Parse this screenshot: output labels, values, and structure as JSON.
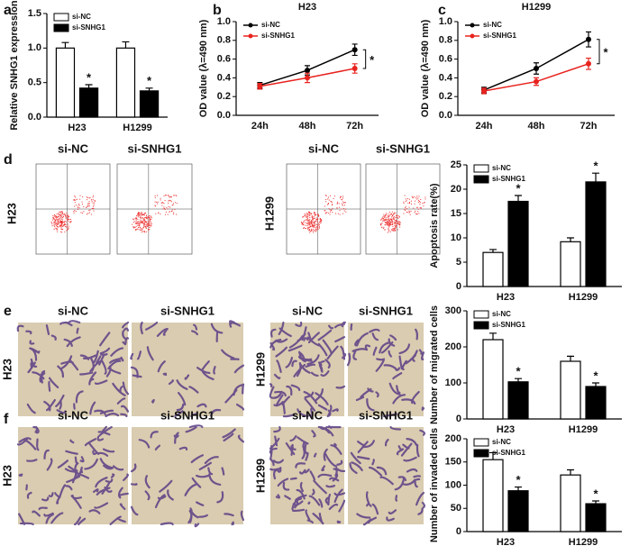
{
  "panel_labels": [
    "a",
    "b",
    "c",
    "d",
    "e",
    "f"
  ],
  "image_panels": [
    {
      "columns": [
        "si-NC",
        "si-SNHG1"
      ],
      "cell_lines": [
        "H23",
        "H1299"
      ]
    },
    {
      "columns": [
        "si-NC",
        "si-SNHG1"
      ],
      "cell_lines": [
        "H23",
        "H1299"
      ]
    },
    {
      "columns": [
        "si-NC",
        "si-SNHG1"
      ],
      "cell_lines": [
        "H23",
        "H1299"
      ]
    }
  ],
  "chart_data": [
    {
      "type": "bar",
      "ylabel": "Relative SNHG1 expression",
      "categories": [
        "H23",
        "H1299"
      ],
      "series": [
        {
          "name": "si-NC",
          "color": "#ffffff",
          "values": [
            1.0,
            1.0
          ],
          "errors": [
            0.08,
            0.09
          ]
        },
        {
          "name": "si-SNHG1",
          "color": "#000000",
          "values": [
            0.42,
            0.38
          ],
          "errors": [
            0.05,
            0.04
          ]
        }
      ],
      "ylim": [
        0,
        1.5
      ],
      "yticks": [
        {
          "value": 0,
          "label": "0.0"
        },
        0.5,
        {
          "value": 1,
          "label": "1.0"
        },
        1.5
      ],
      "legend": "upper left",
      "significance": "*"
    },
    {
      "type": "line",
      "title": "H23",
      "ylabel": "OD value (λ=490 nm)",
      "categories": [
        "24h",
        "48h",
        "72h"
      ],
      "series": [
        {
          "name": "si-NC",
          "color": "#000000",
          "values": [
            0.32,
            0.48,
            0.7
          ],
          "errors": [
            0.03,
            0.05,
            0.06
          ]
        },
        {
          "name": "si-SNHG1",
          "color": "#e8231f",
          "values": [
            0.31,
            0.4,
            0.5
          ],
          "errors": [
            0.03,
            0.05,
            0.05
          ]
        }
      ],
      "ylim": [
        0,
        1.0
      ],
      "yticks": [
        {
          "value": 0,
          "label": "0.0"
        },
        0.2,
        0.4,
        0.6,
        0.8,
        {
          "value": 1,
          "label": "1.0"
        }
      ],
      "legend": "upper left",
      "significance": "*"
    },
    {
      "type": "line",
      "title": "H1299",
      "ylabel": "OD value (λ=490 nm)",
      "categories": [
        "24h",
        "48h",
        "72h"
      ],
      "series": [
        {
          "name": "si-NC",
          "color": "#000000",
          "values": [
            0.27,
            0.5,
            0.81
          ],
          "errors": [
            0.03,
            0.06,
            0.08
          ]
        },
        {
          "name": "si-SNHG1",
          "color": "#e8231f",
          "values": [
            0.26,
            0.36,
            0.55
          ],
          "errors": [
            0.03,
            0.04,
            0.06
          ]
        }
      ],
      "ylim": [
        0,
        1.0
      ],
      "yticks": [
        {
          "value": 0,
          "label": "0.0"
        },
        0.2,
        0.4,
        0.6,
        0.8,
        {
          "value": 1,
          "label": "1.0"
        }
      ],
      "legend": "upper left",
      "significance": "*"
    },
    {
      "type": "bar",
      "ylabel": "Apoptosis rate(%)",
      "categories": [
        "H23",
        "H1299"
      ],
      "series": [
        {
          "name": "si-NC",
          "color": "#ffffff",
          "values": [
            7,
            9.2
          ],
          "errors": [
            0.6,
            0.8
          ]
        },
        {
          "name": "si-SNHG1",
          "color": "#000000",
          "values": [
            17.5,
            21.5
          ],
          "errors": [
            1.2,
            1.8
          ]
        }
      ],
      "ylim": [
        0,
        25
      ],
      "yticks": [
        0,
        5,
        10,
        15,
        20,
        25
      ],
      "legend": "upper left",
      "significance": "*"
    },
    {
      "type": "bar",
      "ylabel": "Number of migrated cells",
      "categories": [
        "H23",
        "H1299"
      ],
      "series": [
        {
          "name": "si-NC",
          "color": "#ffffff",
          "values": [
            220,
            160
          ],
          "errors": [
            18,
            14
          ]
        },
        {
          "name": "si-SNHG1",
          "color": "#000000",
          "values": [
            103,
            90
          ],
          "errors": [
            9,
            10
          ]
        }
      ],
      "ylim": [
        0,
        300
      ],
      "yticks": [
        0,
        100,
        200,
        300
      ],
      "legend": "upper left",
      "significance": "*"
    },
    {
      "type": "bar",
      "ylabel": "Number of invaded cells",
      "categories": [
        "H23",
        "H1299"
      ],
      "series": [
        {
          "name": "si-NC",
          "color": "#ffffff",
          "values": [
            155,
            122
          ],
          "errors": [
            15,
            11
          ]
        },
        {
          "name": "si-SNHG1",
          "color": "#000000",
          "values": [
            88,
            60
          ],
          "errors": [
            8,
            6
          ]
        }
      ],
      "ylim": [
        0,
        200
      ],
      "yticks": [
        0,
        50,
        100,
        150,
        200
      ],
      "legend": "upper left",
      "significance": "*"
    }
  ]
}
